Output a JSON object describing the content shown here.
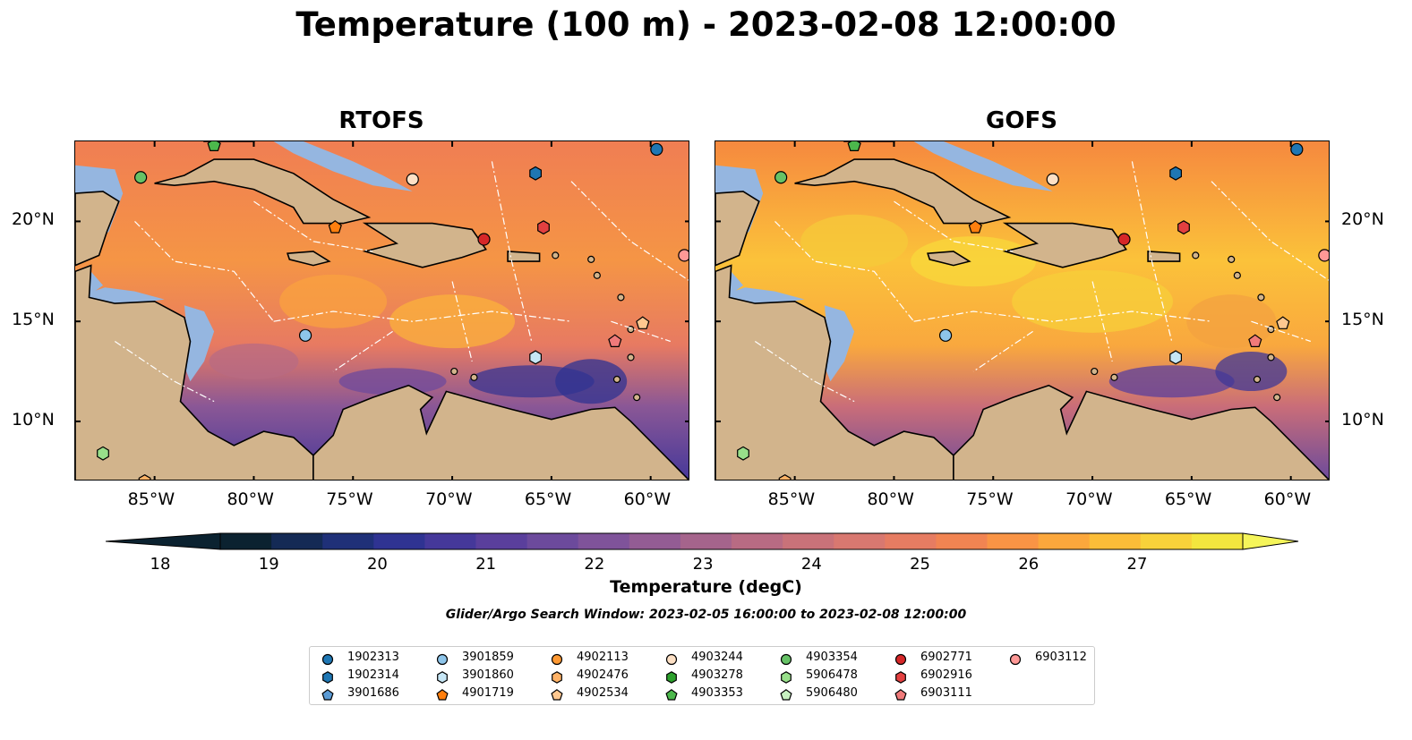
{
  "title": "Temperature (100 m) - 2023-02-08 12:00:00",
  "panels": [
    {
      "title": "RTOFS"
    },
    {
      "title": "GOFS"
    }
  ],
  "axes": {
    "lon_labels": [
      "85°W",
      "80°W",
      "75°W",
      "70°W",
      "65°W",
      "60°W"
    ],
    "lat_labels": [
      "20°N",
      "15°N",
      "10°N"
    ],
    "lon_range": [
      -89,
      -58
    ],
    "lat_range": [
      7,
      24
    ]
  },
  "colorbar": {
    "label": "Temperature (degC)",
    "ticks": [
      "18",
      "19",
      "20",
      "21",
      "22",
      "23",
      "24",
      "25",
      "26",
      "27"
    ],
    "range": [
      18,
      27
    ],
    "colors": [
      "#0b2230",
      "#142a55",
      "#1f3078",
      "#2f3392",
      "#45389a",
      "#5a3f9c",
      "#6c4a9c",
      "#7f539a",
      "#935c94",
      "#a5648c",
      "#b86b83",
      "#c97279",
      "#d87870",
      "#e67c62",
      "#f18452",
      "#f99445",
      "#fba73c",
      "#fbbd38",
      "#f8d23a",
      "#f3e63e"
    ]
  },
  "subtitle": "Glider/Argo Search Window: 2023-02-05 16:00:00 to 2023-02-08 12:00:00",
  "legend": [
    {
      "label": "1902313",
      "shape": "circle",
      "color": "#1f77b4"
    },
    {
      "label": "1902314",
      "shape": "hexagon",
      "color": "#1f77b4"
    },
    {
      "label": "3901686",
      "shape": "pentagon",
      "color": "#5b9bd5"
    },
    {
      "label": "3901859",
      "shape": "circle",
      "color": "#8ec5ea"
    },
    {
      "label": "3901860",
      "shape": "hexagon",
      "color": "#c6e6f5"
    },
    {
      "label": "4901719",
      "shape": "pentagon",
      "color": "#ff7f0e"
    },
    {
      "label": "4902113",
      "shape": "circle",
      "color": "#ff9933"
    },
    {
      "label": "4902476",
      "shape": "hexagon",
      "color": "#ffb266"
    },
    {
      "label": "4902534",
      "shape": "pentagon",
      "color": "#ffc890"
    },
    {
      "label": "4903244",
      "shape": "circle",
      "color": "#fde0c5"
    },
    {
      "label": "4903278",
      "shape": "hexagon",
      "color": "#2ca02c"
    },
    {
      "label": "4903353",
      "shape": "pentagon",
      "color": "#4cb84c"
    },
    {
      "label": "4903354",
      "shape": "circle",
      "color": "#66c266"
    },
    {
      "label": "5906478",
      "shape": "hexagon",
      "color": "#98df8a"
    },
    {
      "label": "5906480",
      "shape": "pentagon",
      "color": "#c7f0c0"
    },
    {
      "label": "6902771",
      "shape": "circle",
      "color": "#d62728"
    },
    {
      "label": "6902916",
      "shape": "hexagon",
      "color": "#e34040"
    },
    {
      "label": "6903111",
      "shape": "pentagon",
      "color": "#f07a7a"
    },
    {
      "label": "6903112",
      "shape": "circle",
      "color": "#ff9896"
    }
  ],
  "markers": [
    {
      "id": "1902313",
      "lon": -59.7,
      "lat": 23.6
    },
    {
      "id": "3901859",
      "lon": -77.4,
      "lat": 14.3
    },
    {
      "id": "3901860",
      "lon": -65.8,
      "lat": 13.2
    },
    {
      "id": "1902314",
      "lon": -65.8,
      "lat": 22.4
    },
    {
      "id": "4901719",
      "lon": -75.9,
      "lat": 19.7
    },
    {
      "id": "4902534",
      "lon": -60.4,
      "lat": 14.9
    },
    {
      "id": "4903244",
      "lon": -72.0,
      "lat": 22.1
    },
    {
      "id": "4903353",
      "lon": -82.0,
      "lat": 23.8
    },
    {
      "id": "4903354",
      "lon": -85.7,
      "lat": 22.2
    },
    {
      "id": "5906478",
      "lon": -87.6,
      "lat": 8.4
    },
    {
      "id": "6902771",
      "lon": -68.4,
      "lat": 19.1
    },
    {
      "id": "6902916",
      "lon": -65.4,
      "lat": 19.7
    },
    {
      "id": "6903111",
      "lon": -61.8,
      "lat": 14.0
    },
    {
      "id": "6903112",
      "lon": -58.3,
      "lat": 18.3
    },
    {
      "id": "4902476",
      "lon": -85.5,
      "lat": 7.0
    }
  ]
}
